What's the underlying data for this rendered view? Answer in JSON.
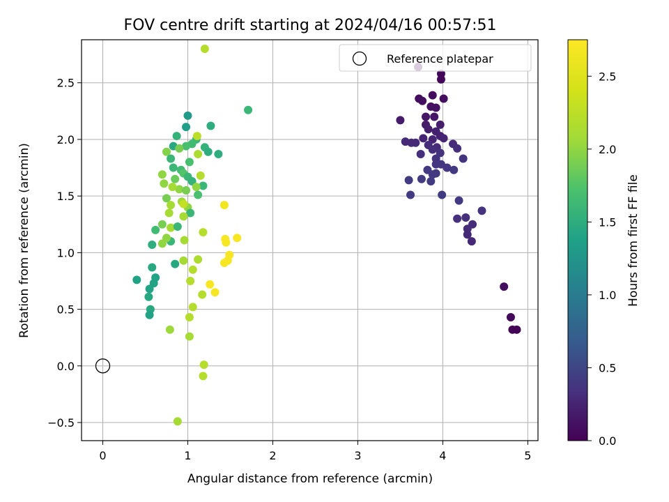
{
  "chart_data": {
    "type": "scatter",
    "title": "FOV centre drift starting at 2024/04/16 00:57:51",
    "xlabel": "Angular distance from reference (arcmin)",
    "ylabel": "Rotation from reference (arcmin)",
    "xlim": [
      -0.25,
      5.12
    ],
    "ylim": [
      -0.66,
      2.88
    ],
    "xticks": [
      0,
      1,
      2,
      3,
      4,
      5
    ],
    "yticks": [
      -0.5,
      0.0,
      0.5,
      1.0,
      1.5,
      2.0,
      2.5
    ],
    "grid": true,
    "legend": {
      "position": "top-right",
      "entries": [
        {
          "label": "Reference platepar",
          "marker": "open-circle"
        }
      ]
    },
    "reference_point": {
      "x": 0.0,
      "y": 0.0
    },
    "colorbar": {
      "label": "Hours from first FF file",
      "min": 0.0,
      "max": 2.75,
      "ticks": [
        0.0,
        0.5,
        1.0,
        1.5,
        2.0,
        2.5
      ],
      "colormap": "viridis"
    },
    "points": [
      {
        "x": 3.71,
        "y": 2.64,
        "c": 0.02
      },
      {
        "x": 3.98,
        "y": 2.58,
        "c": 0.05
      },
      {
        "x": 3.98,
        "y": 2.53,
        "c": 0.05
      },
      {
        "x": 3.88,
        "y": 2.39,
        "c": 0.08
      },
      {
        "x": 3.72,
        "y": 2.36,
        "c": 0.08
      },
      {
        "x": 4.01,
        "y": 2.36,
        "c": 0.1
      },
      {
        "x": 3.76,
        "y": 2.34,
        "c": 0.1
      },
      {
        "x": 3.86,
        "y": 2.29,
        "c": 0.12
      },
      {
        "x": 3.92,
        "y": 2.28,
        "c": 0.12
      },
      {
        "x": 3.8,
        "y": 2.2,
        "c": 0.15
      },
      {
        "x": 3.9,
        "y": 2.2,
        "c": 0.15
      },
      {
        "x": 3.5,
        "y": 2.17,
        "c": 0.18
      },
      {
        "x": 3.8,
        "y": 2.13,
        "c": 0.18
      },
      {
        "x": 3.97,
        "y": 2.13,
        "c": 0.2
      },
      {
        "x": 3.83,
        "y": 2.09,
        "c": 0.2
      },
      {
        "x": 3.92,
        "y": 2.07,
        "c": 0.22
      },
      {
        "x": 3.97,
        "y": 2.03,
        "c": 0.22
      },
      {
        "x": 4.01,
        "y": 2.01,
        "c": 0.25
      },
      {
        "x": 3.77,
        "y": 2.01,
        "c": 0.25
      },
      {
        "x": 3.88,
        "y": 2.0,
        "c": 0.25
      },
      {
        "x": 3.56,
        "y": 1.98,
        "c": 0.28
      },
      {
        "x": 3.63,
        "y": 1.97,
        "c": 0.28
      },
      {
        "x": 3.68,
        "y": 1.97,
        "c": 0.28
      },
      {
        "x": 3.83,
        "y": 1.95,
        "c": 0.3
      },
      {
        "x": 3.93,
        "y": 1.93,
        "c": 0.3
      },
      {
        "x": 4.12,
        "y": 1.96,
        "c": 0.3
      },
      {
        "x": 3.88,
        "y": 1.91,
        "c": 0.32
      },
      {
        "x": 4.17,
        "y": 1.92,
        "c": 0.32
      },
      {
        "x": 3.74,
        "y": 1.87,
        "c": 0.32
      },
      {
        "x": 3.97,
        "y": 1.88,
        "c": 0.35
      },
      {
        "x": 3.92,
        "y": 1.83,
        "c": 0.35
      },
      {
        "x": 4.24,
        "y": 1.83,
        "c": 0.35
      },
      {
        "x": 3.92,
        "y": 1.78,
        "c": 0.38
      },
      {
        "x": 3.98,
        "y": 1.78,
        "c": 0.38
      },
      {
        "x": 4.05,
        "y": 1.75,
        "c": 0.38
      },
      {
        "x": 3.82,
        "y": 1.73,
        "c": 0.4
      },
      {
        "x": 4.13,
        "y": 1.73,
        "c": 0.4
      },
      {
        "x": 3.88,
        "y": 1.69,
        "c": 0.4
      },
      {
        "x": 3.92,
        "y": 1.7,
        "c": 0.4
      },
      {
        "x": 3.6,
        "y": 1.64,
        "c": 0.42
      },
      {
        "x": 3.75,
        "y": 1.65,
        "c": 0.42
      },
      {
        "x": 3.86,
        "y": 1.63,
        "c": 0.42
      },
      {
        "x": 3.62,
        "y": 1.51,
        "c": 0.42
      },
      {
        "x": 3.99,
        "y": 1.51,
        "c": 0.42
      },
      {
        "x": 4.19,
        "y": 1.46,
        "c": 0.4
      },
      {
        "x": 4.46,
        "y": 1.37,
        "c": 0.35
      },
      {
        "x": 4.17,
        "y": 1.3,
        "c": 0.32
      },
      {
        "x": 4.27,
        "y": 1.31,
        "c": 0.32
      },
      {
        "x": 4.35,
        "y": 1.25,
        "c": 0.3
      },
      {
        "x": 4.29,
        "y": 1.21,
        "c": 0.3
      },
      {
        "x": 4.29,
        "y": 1.16,
        "c": 0.28
      },
      {
        "x": 4.34,
        "y": 1.1,
        "c": 0.28
      },
      {
        "x": 4.72,
        "y": 0.7,
        "c": 0.1
      },
      {
        "x": 4.8,
        "y": 0.43,
        "c": 0.05
      },
      {
        "x": 4.82,
        "y": 0.32,
        "c": 0.02
      },
      {
        "x": 4.87,
        "y": 0.32,
        "c": 0.01
      },
      {
        "x": 1.71,
        "y": 2.26,
        "c": 1.6
      },
      {
        "x": 1.0,
        "y": 2.21,
        "c": 1.3
      },
      {
        "x": 0.98,
        "y": 2.11,
        "c": 1.35
      },
      {
        "x": 1.27,
        "y": 2.12,
        "c": 1.5
      },
      {
        "x": 0.87,
        "y": 2.03,
        "c": 1.55
      },
      {
        "x": 1.1,
        "y": 2.0,
        "c": 1.6
      },
      {
        "x": 1.05,
        "y": 1.96,
        "c": 1.65
      },
      {
        "x": 0.98,
        "y": 1.94,
        "c": 1.7
      },
      {
        "x": 0.83,
        "y": 1.94,
        "c": 1.45
      },
      {
        "x": 1.2,
        "y": 1.93,
        "c": 1.55
      },
      {
        "x": 1.24,
        "y": 1.89,
        "c": 1.5
      },
      {
        "x": 1.36,
        "y": 1.87,
        "c": 1.5
      },
      {
        "x": 0.9,
        "y": 1.92,
        "c": 1.9
      },
      {
        "x": 0.75,
        "y": 1.89,
        "c": 1.95
      },
      {
        "x": 0.8,
        "y": 1.83,
        "c": 1.6
      },
      {
        "x": 1.02,
        "y": 1.8,
        "c": 1.7
      },
      {
        "x": 0.83,
        "y": 1.75,
        "c": 1.6
      },
      {
        "x": 0.92,
        "y": 1.73,
        "c": 1.65
      },
      {
        "x": 0.95,
        "y": 1.7,
        "c": 1.75
      },
      {
        "x": 1.0,
        "y": 1.67,
        "c": 1.6
      },
      {
        "x": 1.05,
        "y": 1.63,
        "c": 1.55
      },
      {
        "x": 0.85,
        "y": 1.65,
        "c": 1.85
      },
      {
        "x": 0.72,
        "y": 1.61,
        "c": 2.0
      },
      {
        "x": 1.18,
        "y": 1.59,
        "c": 1.6
      },
      {
        "x": 0.9,
        "y": 1.56,
        "c": 2.0
      },
      {
        "x": 0.98,
        "y": 1.55,
        "c": 1.9
      },
      {
        "x": 1.1,
        "y": 1.58,
        "c": 2.0
      },
      {
        "x": 1.12,
        "y": 1.51,
        "c": 1.7
      },
      {
        "x": 0.75,
        "y": 1.48,
        "c": 1.9
      },
      {
        "x": 0.8,
        "y": 1.42,
        "c": 2.1
      },
      {
        "x": 0.93,
        "y": 1.45,
        "c": 2.05
      },
      {
        "x": 1.0,
        "y": 1.4,
        "c": 2.0
      },
      {
        "x": 0.78,
        "y": 1.35,
        "c": 2.1
      },
      {
        "x": 1.03,
        "y": 1.35,
        "c": 1.6
      },
      {
        "x": 0.62,
        "y": 1.2,
        "c": 1.65
      },
      {
        "x": 0.7,
        "y": 1.25,
        "c": 1.9
      },
      {
        "x": 0.8,
        "y": 1.22,
        "c": 2.1
      },
      {
        "x": 0.88,
        "y": 1.23,
        "c": 1.6
      },
      {
        "x": 1.18,
        "y": 1.18,
        "c": 2.2
      },
      {
        "x": 0.58,
        "y": 1.07,
        "c": 1.5
      },
      {
        "x": 0.7,
        "y": 1.08,
        "c": 2.0
      },
      {
        "x": 0.8,
        "y": 1.1,
        "c": 1.6
      },
      {
        "x": 0.96,
        "y": 1.11,
        "c": 2.1
      },
      {
        "x": 0.85,
        "y": 0.9,
        "c": 1.45
      },
      {
        "x": 0.95,
        "y": 0.93,
        "c": 2.1
      },
      {
        "x": 1.12,
        "y": 0.94,
        "c": 2.15
      },
      {
        "x": 1.06,
        "y": 0.85,
        "c": 2.2
      },
      {
        "x": 0.58,
        "y": 0.87,
        "c": 1.45
      },
      {
        "x": 0.62,
        "y": 0.78,
        "c": 1.4
      },
      {
        "x": 0.4,
        "y": 0.76,
        "c": 1.4
      },
      {
        "x": 0.6,
        "y": 0.73,
        "c": 1.4
      },
      {
        "x": 0.55,
        "y": 0.68,
        "c": 1.4
      },
      {
        "x": 1.03,
        "y": 0.75,
        "c": 2.2
      },
      {
        "x": 0.54,
        "y": 0.61,
        "c": 1.45
      },
      {
        "x": 1.17,
        "y": 0.63,
        "c": 2.2
      },
      {
        "x": 0.56,
        "y": 0.5,
        "c": 1.45
      },
      {
        "x": 1.06,
        "y": 0.52,
        "c": 2.2
      },
      {
        "x": 0.55,
        "y": 0.45,
        "c": 1.4
      },
      {
        "x": 1.02,
        "y": 0.43,
        "c": 2.2
      },
      {
        "x": 0.79,
        "y": 0.32,
        "c": 2.05
      },
      {
        "x": 1.02,
        "y": 0.26,
        "c": 2.1
      },
      {
        "x": 1.19,
        "y": 0.01,
        "c": 2.2
      },
      {
        "x": 1.18,
        "y": -0.09,
        "c": 2.2
      },
      {
        "x": 0.88,
        "y": -0.49,
        "c": 2.1
      },
      {
        "x": 1.2,
        "y": 2.8,
        "c": 2.2
      },
      {
        "x": 1.11,
        "y": 2.03,
        "c": 2.25
      },
      {
        "x": 1.12,
        "y": 1.87,
        "c": 2.15
      },
      {
        "x": 1.15,
        "y": 1.68,
        "c": 2.2
      },
      {
        "x": 0.7,
        "y": 1.69,
        "c": 2.0
      },
      {
        "x": 0.82,
        "y": 1.58,
        "c": 2.1
      },
      {
        "x": 0.95,
        "y": 1.32,
        "c": 2.1
      },
      {
        "x": 0.75,
        "y": 1.13,
        "c": 2.0
      },
      {
        "x": 0.95,
        "y": 1.43,
        "c": 2.3
      },
      {
        "x": 1.43,
        "y": 1.42,
        "c": 2.65
      },
      {
        "x": 1.44,
        "y": 1.12,
        "c": 2.7
      },
      {
        "x": 1.45,
        "y": 1.09,
        "c": 2.7
      },
      {
        "x": 1.58,
        "y": 1.13,
        "c": 2.7
      },
      {
        "x": 1.49,
        "y": 0.98,
        "c": 2.7
      },
      {
        "x": 1.43,
        "y": 0.91,
        "c": 2.7
      },
      {
        "x": 1.47,
        "y": 0.93,
        "c": 2.7
      },
      {
        "x": 1.26,
        "y": 0.72,
        "c": 2.7
      },
      {
        "x": 1.32,
        "y": 0.65,
        "c": 2.7
      }
    ]
  }
}
